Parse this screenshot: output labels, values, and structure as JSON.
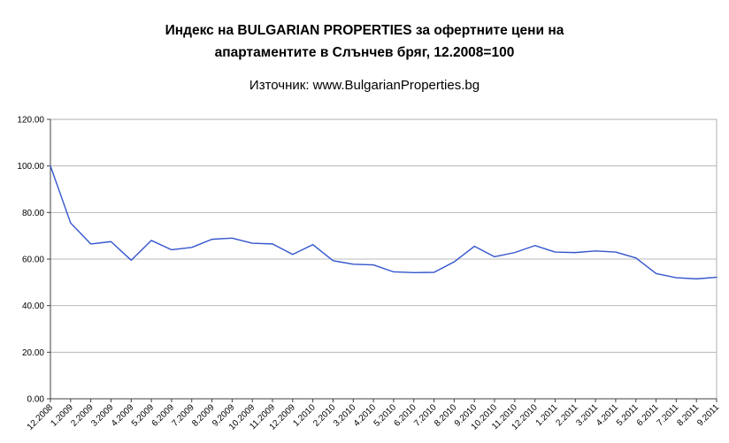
{
  "chart_data": {
    "type": "line",
    "title_line1": "Индекс на BULGARIAN PROPERTIES за офертните цени на",
    "title_line2": "апартаментите в Слънчев бряг, 12.2008=100",
    "subtitle": "Източник: www.BulgarianProperties.bg",
    "xlabel": "",
    "ylabel": "",
    "ylim": [
      0,
      120
    ],
    "yticks": [
      0,
      20,
      40,
      60,
      80,
      100,
      120
    ],
    "ytick_labels": [
      "0.00",
      "20.00",
      "40.00",
      "60.00",
      "80.00",
      "100.00",
      "120.00"
    ],
    "grid": true,
    "legend_position": "none",
    "x_label_rotation": -45,
    "categories": [
      "12.2008",
      "1.2009",
      "2.2009",
      "3.2009",
      "4.2009",
      "5.2009",
      "6.2009",
      "7.2009",
      "8.2009",
      "9.2009",
      "10.2009",
      "11.2009",
      "12.2009",
      "1.2010",
      "2.2010",
      "3.2010",
      "4.2010",
      "5.2010",
      "6.2010",
      "7.2010",
      "8.2010",
      "9.2010",
      "10.2010",
      "11.2010",
      "12.2010",
      "1.2011",
      "2.2011",
      "3.2011",
      "4.2011",
      "5.2011",
      "6.2011",
      "7.2011",
      "8.2011",
      "9.2011"
    ],
    "series": [
      {
        "values": [
          100.0,
          75.5,
          66.5,
          67.5,
          59.5,
          68.0,
          64.0,
          65.0,
          68.5,
          69.0,
          66.8,
          66.5,
          62.0,
          66.2,
          59.3,
          57.8,
          57.5,
          54.5,
          54.2,
          54.3,
          58.8,
          65.5,
          61.0,
          62.8,
          65.8,
          63.0,
          62.8,
          63.5,
          63.0,
          60.5,
          53.8,
          52.0,
          51.5,
          52.2
        ],
        "color": "#3355cc"
      }
    ],
    "colors": {
      "line": "#3355cc",
      "gridline": "#b8b8b8",
      "plot_border": "#b0b0b0",
      "axis": "#404040",
      "text": "#000000",
      "background": "#ffffff"
    }
  }
}
